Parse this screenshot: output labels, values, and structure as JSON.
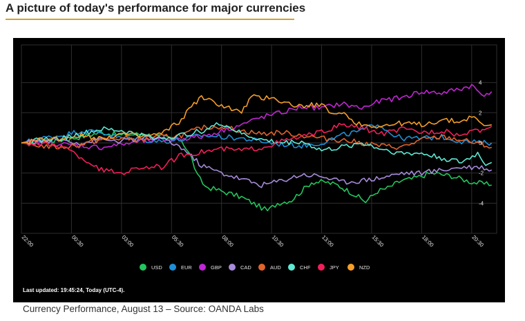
{
  "heading": "A picture of today's performance for major currencies",
  "caption": "Currency Performance, August 13 – Source: OANDA Labs",
  "last_updated": "Last updated: 19:45:24, Today (UTC-4).",
  "chart_data": {
    "type": "line",
    "x_tick_labels": [
      "22:00",
      "00:30",
      "03:00",
      "05:30",
      "08:00",
      "10:30",
      "13:00",
      "15:30",
      "18:00",
      "20:30"
    ],
    "x_tick_hours": [
      0,
      2.5,
      5,
      7.5,
      10,
      12.5,
      15,
      17.5,
      20,
      22.5
    ],
    "xlim": [
      0,
      23.75
    ],
    "ylim": [
      -6,
      6.5
    ],
    "y_ticks": [
      4,
      2,
      0,
      -2,
      -4
    ],
    "grid": true,
    "legend_position": "bottom",
    "series": [
      {
        "name": "USD",
        "color": "#22c55e",
        "points": [
          [
            0,
            0
          ],
          [
            1,
            0.1
          ],
          [
            2,
            0.2
          ],
          [
            3,
            0.4
          ],
          [
            4,
            0.7
          ],
          [
            5,
            0.5
          ],
          [
            6,
            0.6
          ],
          [
            7,
            0.4
          ],
          [
            7.5,
            0.3
          ],
          [
            8,
            0.2
          ],
          [
            8.5,
            -1
          ],
          [
            8.8,
            -2.2
          ],
          [
            9.2,
            -2.9
          ],
          [
            10,
            -3.2
          ],
          [
            11,
            -3.6
          ],
          [
            12,
            -4.3
          ],
          [
            12.3,
            -4.5
          ],
          [
            12.8,
            -4.0
          ],
          [
            13.5,
            -3.8
          ],
          [
            14.5,
            -2.6
          ],
          [
            15.2,
            -2.6
          ],
          [
            15.8,
            -2.8
          ],
          [
            16.5,
            -3.3
          ],
          [
            17.2,
            -3.9
          ],
          [
            17.8,
            -3.2
          ],
          [
            18.3,
            -3.0
          ],
          [
            19,
            -2.5
          ],
          [
            19.5,
            -2.4
          ],
          [
            20.5,
            -2.0
          ],
          [
            21.5,
            -2.2
          ],
          [
            22.5,
            -2.6
          ],
          [
            23.5,
            -2.8
          ]
        ]
      },
      {
        "name": "EUR",
        "color": "#1d8fd8",
        "points": [
          [
            0,
            0
          ],
          [
            1,
            0.3
          ],
          [
            2,
            0.5
          ],
          [
            3,
            0.8
          ],
          [
            4,
            0.7
          ],
          [
            5,
            0.3
          ],
          [
            6,
            0.2
          ],
          [
            7,
            0.1
          ],
          [
            8,
            0.2
          ],
          [
            9,
            0.5
          ],
          [
            10,
            0.4
          ],
          [
            11,
            0.3
          ],
          [
            12,
            0.1
          ],
          [
            13,
            -0.1
          ],
          [
            14,
            -0.2
          ],
          [
            15,
            0.0
          ],
          [
            16,
            0.5
          ],
          [
            17,
            0.8
          ],
          [
            17.8,
            1.3
          ],
          [
            18.5,
            0.6
          ],
          [
            19,
            0.3
          ],
          [
            20,
            0.3
          ],
          [
            21,
            0.4
          ],
          [
            22,
            0.1
          ],
          [
            23,
            0.0
          ],
          [
            23.5,
            0.0
          ]
        ]
      },
      {
        "name": "GBP",
        "color": "#c026d3",
        "points": [
          [
            0,
            0
          ],
          [
            1,
            0.1
          ],
          [
            2,
            -0.1
          ],
          [
            3,
            -0.2
          ],
          [
            4,
            -0.3
          ],
          [
            5,
            -0.1
          ],
          [
            6,
            0.1
          ],
          [
            7,
            0.2
          ],
          [
            8,
            0.3
          ],
          [
            9,
            0.4
          ],
          [
            10,
            0.8
          ],
          [
            11,
            1.2
          ],
          [
            12,
            1.7
          ],
          [
            13,
            2.0
          ],
          [
            14,
            2.4
          ],
          [
            15,
            2.3
          ],
          [
            16,
            2.6
          ],
          [
            17,
            2.3
          ],
          [
            18,
            2.8
          ],
          [
            19,
            3.0
          ],
          [
            20,
            3.4
          ],
          [
            21,
            3.3
          ],
          [
            22,
            3.6
          ],
          [
            22.5,
            3.8
          ],
          [
            23,
            3.2
          ],
          [
            23.5,
            3.4
          ]
        ]
      },
      {
        "name": "CAD",
        "color": "#a78bdb",
        "points": [
          [
            0,
            0
          ],
          [
            1,
            0.1
          ],
          [
            2,
            0.2
          ],
          [
            3,
            0.0
          ],
          [
            4,
            0.2
          ],
          [
            5,
            0.1
          ],
          [
            6,
            0.3
          ],
          [
            7,
            0.3
          ],
          [
            8,
            -0.3
          ],
          [
            9,
            -1.5
          ],
          [
            10,
            -2.0
          ],
          [
            11,
            -2.4
          ],
          [
            12,
            -2.8
          ],
          [
            13,
            -2.5
          ],
          [
            14,
            -2.1
          ],
          [
            15,
            -2.2
          ],
          [
            16,
            -2.6
          ],
          [
            17,
            -2.5
          ],
          [
            18,
            -2.3
          ],
          [
            19,
            -2.0
          ],
          [
            20,
            -2.0
          ],
          [
            21,
            -1.8
          ],
          [
            22,
            -1.6
          ],
          [
            23,
            -1.6
          ],
          [
            23.5,
            -1.8
          ]
        ]
      },
      {
        "name": "AUD",
        "color": "#e2632a",
        "points": [
          [
            0,
            0
          ],
          [
            1,
            -0.2
          ],
          [
            2,
            -0.3
          ],
          [
            3,
            -0.1
          ],
          [
            4,
            0.2
          ],
          [
            5,
            0.3
          ],
          [
            6,
            0.2
          ],
          [
            7,
            0.4
          ],
          [
            8,
            0.5
          ],
          [
            9,
            1.0
          ],
          [
            10,
            1.1
          ],
          [
            11,
            0.8
          ],
          [
            12,
            0.6
          ],
          [
            13,
            0.7
          ],
          [
            14,
            0.5
          ],
          [
            15,
            0.3
          ],
          [
            16,
            0.2
          ],
          [
            17,
            0.0
          ],
          [
            18,
            -0.2
          ],
          [
            19,
            -0.3
          ],
          [
            20,
            0.2
          ],
          [
            21,
            0.4
          ],
          [
            22,
            0.2
          ],
          [
            23,
            -0.1
          ],
          [
            23.5,
            -0.3
          ]
        ]
      },
      {
        "name": "CHF",
        "color": "#5eead4",
        "points": [
          [
            0,
            0
          ],
          [
            1,
            0.2
          ],
          [
            2,
            0.3
          ],
          [
            3,
            0.6
          ],
          [
            4,
            0.9
          ],
          [
            5,
            0.8
          ],
          [
            6,
            0.5
          ],
          [
            7,
            0.3
          ],
          [
            8,
            0.5
          ],
          [
            9,
            0.8
          ],
          [
            10,
            1.3
          ],
          [
            11,
            0.6
          ],
          [
            12,
            0.2
          ],
          [
            13,
            0.0
          ],
          [
            14,
            0.1
          ],
          [
            15,
            -0.5
          ],
          [
            16,
            -0.3
          ],
          [
            17,
            0.0
          ],
          [
            18,
            -0.4
          ],
          [
            19,
            -0.7
          ],
          [
            20,
            -0.7
          ],
          [
            21,
            -1.0
          ],
          [
            22,
            -1.3
          ],
          [
            22.8,
            -0.7
          ],
          [
            23.2,
            -1.4
          ],
          [
            23.5,
            -1.3
          ]
        ]
      },
      {
        "name": "JPY",
        "color": "#f01f5a",
        "points": [
          [
            0,
            0
          ],
          [
            1,
            -0.1
          ],
          [
            2,
            -0.2
          ],
          [
            3,
            -1.0
          ],
          [
            4,
            -1.8
          ],
          [
            5,
            -2.0
          ],
          [
            6,
            -1.6
          ],
          [
            7,
            -1.6
          ],
          [
            8,
            -0.8
          ],
          [
            9,
            -0.6
          ],
          [
            10,
            -0.4
          ],
          [
            11,
            -0.5
          ],
          [
            12,
            -0.3
          ],
          [
            13,
            0.1
          ],
          [
            14,
            0.4
          ],
          [
            15,
            0.7
          ],
          [
            16,
            1.2
          ],
          [
            17,
            1.0
          ],
          [
            18,
            0.6
          ],
          [
            19,
            0.9
          ],
          [
            20,
            0.7
          ],
          [
            21,
            0.8
          ],
          [
            22,
            0.5
          ],
          [
            22.8,
            0.8
          ],
          [
            23.5,
            1.1
          ]
        ]
      },
      {
        "name": "NZD",
        "color": "#f59e2a",
        "points": [
          [
            0,
            0
          ],
          [
            1,
            0.2
          ],
          [
            2,
            0.3
          ],
          [
            3,
            0.5
          ],
          [
            4,
            0.3
          ],
          [
            5,
            0.6
          ],
          [
            6,
            0.4
          ],
          [
            7,
            0.6
          ],
          [
            8,
            1.5
          ],
          [
            8.5,
            2.5
          ],
          [
            9,
            3.0
          ],
          [
            10,
            2.5
          ],
          [
            11,
            2.0
          ],
          [
            11.5,
            3.1
          ],
          [
            12,
            2.9
          ],
          [
            12.5,
            3.1
          ],
          [
            13,
            2.7
          ],
          [
            14,
            2.4
          ],
          [
            15,
            2.6
          ],
          [
            15.5,
            1.8
          ],
          [
            16,
            2.1
          ],
          [
            16.5,
            1.5
          ],
          [
            17,
            1.2
          ],
          [
            18,
            1.1
          ],
          [
            19,
            1.3
          ],
          [
            20,
            1.2
          ],
          [
            21,
            1.5
          ],
          [
            22,
            1.4
          ],
          [
            22.5,
            1.8
          ],
          [
            23,
            1.2
          ],
          [
            23.5,
            1.2
          ]
        ]
      }
    ]
  }
}
